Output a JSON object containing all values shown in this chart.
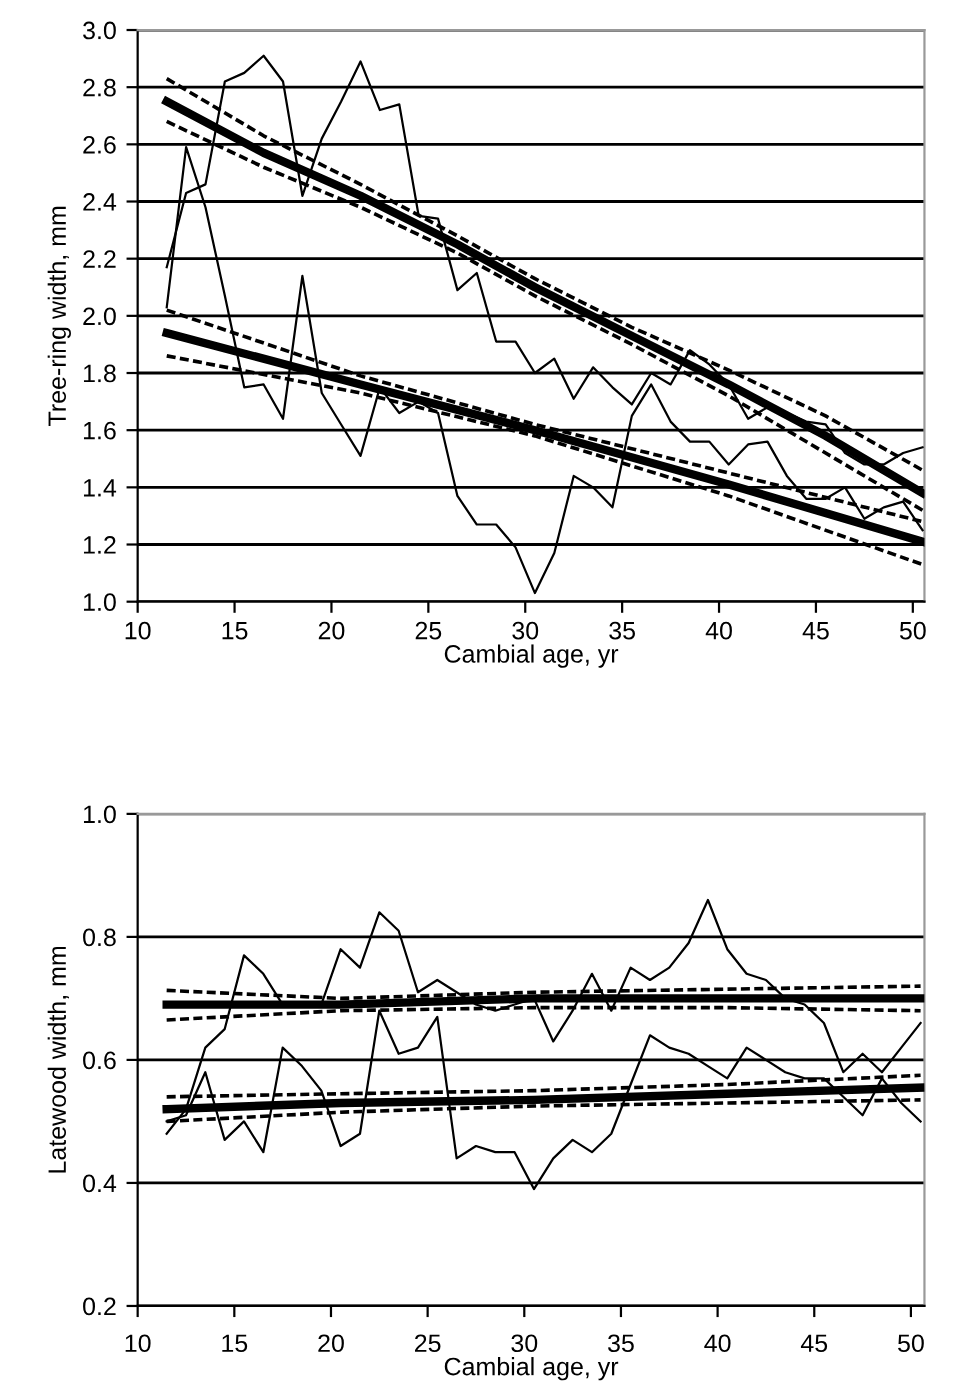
{
  "chart_data": [
    {
      "type": "line",
      "xlabel": "Cambial age, yr",
      "ylabel": "Tree-ring width, mm",
      "xlim": [
        10,
        50.6
      ],
      "xticks": [
        10,
        15,
        20,
        25,
        30,
        35,
        40,
        45,
        50
      ],
      "ylim": [
        1.0,
        3.0
      ],
      "yticks": [
        {
          "value": 1.0,
          "label": "1.0"
        },
        {
          "value": 1.2,
          "label": "1.2"
        },
        {
          "value": 1.4,
          "label": "1.4"
        },
        {
          "value": 1.6,
          "label": "1.6"
        },
        {
          "value": 1.8,
          "label": "1.8"
        },
        {
          "value": 2.0,
          "label": "2.0"
        },
        {
          "value": 2.2,
          "label": "2.2"
        },
        {
          "value": 2.4,
          "label": "2.4"
        },
        {
          "value": 2.6,
          "label": "2.6"
        },
        {
          "value": 2.8,
          "label": "2.8"
        },
        {
          "value": 3.0,
          "label": "3.0"
        }
      ],
      "grid": "y",
      "legend": false,
      "marker": "none",
      "x": [
        11.5,
        12.5,
        13.5,
        14.5,
        15.5,
        16.5,
        17.5,
        18.5,
        19.5,
        20.5,
        21.5,
        22.5,
        23.5,
        24.5,
        25.5,
        26.5,
        27.5,
        28.5,
        29.5,
        30.5,
        31.5,
        32.5,
        33.5,
        34.5,
        35.5,
        36.5,
        37.5,
        38.5,
        39.5,
        40.5,
        41.5,
        42.5,
        43.5,
        44.5,
        45.5,
        46.5,
        47.5,
        48.5,
        49.5,
        50.5
      ],
      "series": [
        {
          "color": "#000000",
          "line_style": "solid",
          "values": [
            2.17,
            2.43,
            2.46,
            2.82,
            2.85,
            2.91,
            2.82,
            2.42,
            2.62,
            2.75,
            2.89,
            2.72,
            2.74,
            2.35,
            2.34,
            2.09,
            2.15,
            1.91,
            1.91,
            1.8,
            1.85,
            1.71,
            1.82,
            1.75,
            1.69,
            1.8,
            1.76,
            1.88,
            1.83,
            1.76,
            1.64,
            1.68,
            1.66,
            1.63,
            1.62,
            1.52,
            1.48,
            1.48,
            1.52,
            1.54
          ]
        },
        {
          "color": "#000000",
          "line_style": "solid",
          "values": [
            2.03,
            2.59,
            2.38,
            2.07,
            1.75,
            1.76,
            1.64,
            2.14,
            1.73,
            1.62,
            1.51,
            1.75,
            1.66,
            1.7,
            1.66,
            1.37,
            1.27,
            1.27,
            1.19,
            1.03,
            1.17,
            1.44,
            1.4,
            1.33,
            1.65,
            1.76,
            1.63,
            1.56,
            1.56,
            1.48,
            1.55,
            1.56,
            1.44,
            1.36,
            1.36,
            1.4,
            1.29,
            1.33,
            1.35,
            1.25
          ]
        },
        {
          "color": "#000000",
          "line_style": "solid",
          "x": [
            11.5,
            16.5,
            21.5,
            26.5,
            30.5,
            35.5,
            40.5,
            45.5,
            50.5
          ],
          "values": [
            2.75,
            2.57,
            2.42,
            2.25,
            2.1,
            1.93,
            1.76,
            1.58,
            1.38
          ]
        },
        {
          "color": "#000000",
          "line_style": "dashed",
          "x": [
            11.5,
            16.5,
            21.5,
            26.5,
            30.5,
            35.5,
            40.5,
            45.5,
            50.5
          ],
          "values": [
            2.68,
            2.52,
            2.38,
            2.22,
            2.07,
            1.9,
            1.72,
            1.52,
            1.32
          ]
        },
        {
          "color": "#000000",
          "line_style": "dashed",
          "x": [
            11.5,
            16.5,
            21.5,
            26.5,
            30.5,
            35.5,
            40.5,
            45.5,
            50.5
          ],
          "values": [
            2.83,
            2.63,
            2.46,
            2.28,
            2.13,
            1.96,
            1.81,
            1.65,
            1.46
          ]
        },
        {
          "color": "#000000",
          "line_style": "solid",
          "x": [
            11.5,
            21.5,
            30.5,
            40.5,
            50.5
          ],
          "values": [
            1.94,
            1.76,
            1.6,
            1.41,
            1.21
          ]
        },
        {
          "color": "#000000",
          "line_style": "dashed",
          "x": [
            11.5,
            21.5,
            30.5,
            40.5,
            50.5
          ],
          "values": [
            1.86,
            1.73,
            1.58,
            1.37,
            1.13
          ]
        },
        {
          "color": "#000000",
          "line_style": "dashed",
          "x": [
            11.5,
            21.5,
            30.5,
            40.5,
            50.5
          ],
          "values": [
            2.02,
            1.79,
            1.62,
            1.45,
            1.28
          ]
        }
      ]
    },
    {
      "type": "line",
      "xlabel": "Cambial age, yr",
      "ylabel": "Latewood width, mm",
      "xlim": [
        10,
        50.7
      ],
      "xticks": [
        10,
        15,
        20,
        25,
        30,
        35,
        40,
        45,
        50
      ],
      "ylim": [
        0.2,
        1.0
      ],
      "yticks": [
        0.2,
        0.4,
        0.6,
        0.8,
        {
          "value": 1.0,
          "label": "1.0"
        }
      ],
      "grid": "y",
      "legend": false,
      "marker": "none",
      "x": [
        11.5,
        12.5,
        13.5,
        14.5,
        15.5,
        16.5,
        17.5,
        18.5,
        19.5,
        20.5,
        21.5,
        22.5,
        23.5,
        24.5,
        25.5,
        26.5,
        27.5,
        28.5,
        29.5,
        30.5,
        31.5,
        32.5,
        33.5,
        34.5,
        35.5,
        36.5,
        37.5,
        38.5,
        39.5,
        40.5,
        41.5,
        42.5,
        43.5,
        44.5,
        45.5,
        46.5,
        47.5,
        48.5,
        49.5,
        50.5
      ],
      "series": [
        {
          "color": "#000000",
          "line_style": "solid",
          "values": [
            0.48,
            0.52,
            0.62,
            0.65,
            0.77,
            0.74,
            0.69,
            0.69,
            0.69,
            0.78,
            0.75,
            0.84,
            0.81,
            0.71,
            0.73,
            0.71,
            0.69,
            0.68,
            0.69,
            0.7,
            0.63,
            0.68,
            0.74,
            0.68,
            0.75,
            0.73,
            0.75,
            0.79,
            0.86,
            0.78,
            0.74,
            0.73,
            0.7,
            0.69,
            0.66,
            0.58,
            0.61,
            0.58,
            0.62,
            0.66
          ]
        },
        {
          "color": "#000000",
          "line_style": "solid",
          "values": [
            0.5,
            0.51,
            0.58,
            0.47,
            0.5,
            0.45,
            0.62,
            0.59,
            0.55,
            0.46,
            0.48,
            0.68,
            0.61,
            0.62,
            0.67,
            0.44,
            0.46,
            0.45,
            0.45,
            0.39,
            0.44,
            0.47,
            0.45,
            0.48,
            0.56,
            0.64,
            0.62,
            0.61,
            0.59,
            0.57,
            0.62,
            0.6,
            0.58,
            0.57,
            0.57,
            0.54,
            0.51,
            0.57,
            0.53,
            0.5
          ]
        },
        {
          "color": "#000000",
          "line_style": "solid",
          "x": [
            11.5,
            20.5,
            30.5,
            40.5,
            50.5
          ],
          "values": [
            0.69,
            0.69,
            0.7,
            0.7,
            0.7
          ]
        },
        {
          "color": "#000000",
          "line_style": "dashed",
          "x": [
            11.5,
            20.5,
            30.5,
            40.5,
            50.5
          ],
          "values": [
            0.665,
            0.68,
            0.685,
            0.685,
            0.68
          ]
        },
        {
          "color": "#000000",
          "line_style": "dashed",
          "x": [
            11.5,
            20.5,
            30.5,
            40.5,
            50.5
          ],
          "values": [
            0.713,
            0.7,
            0.71,
            0.715,
            0.72
          ]
        },
        {
          "color": "#000000",
          "line_style": "solid",
          "x": [
            11.5,
            20.5,
            30.5,
            40.5,
            50.5
          ],
          "values": [
            0.52,
            0.53,
            0.535,
            0.545,
            0.555
          ]
        },
        {
          "color": "#000000",
          "line_style": "dashed",
          "x": [
            11.5,
            20.5,
            30.5,
            40.5,
            50.5
          ],
          "values": [
            0.5,
            0.515,
            0.525,
            0.53,
            0.535
          ]
        },
        {
          "color": "#000000",
          "line_style": "dashed",
          "x": [
            11.5,
            20.5,
            30.5,
            40.5,
            50.5
          ],
          "values": [
            0.54,
            0.545,
            0.55,
            0.56,
            0.575
          ]
        }
      ]
    }
  ]
}
